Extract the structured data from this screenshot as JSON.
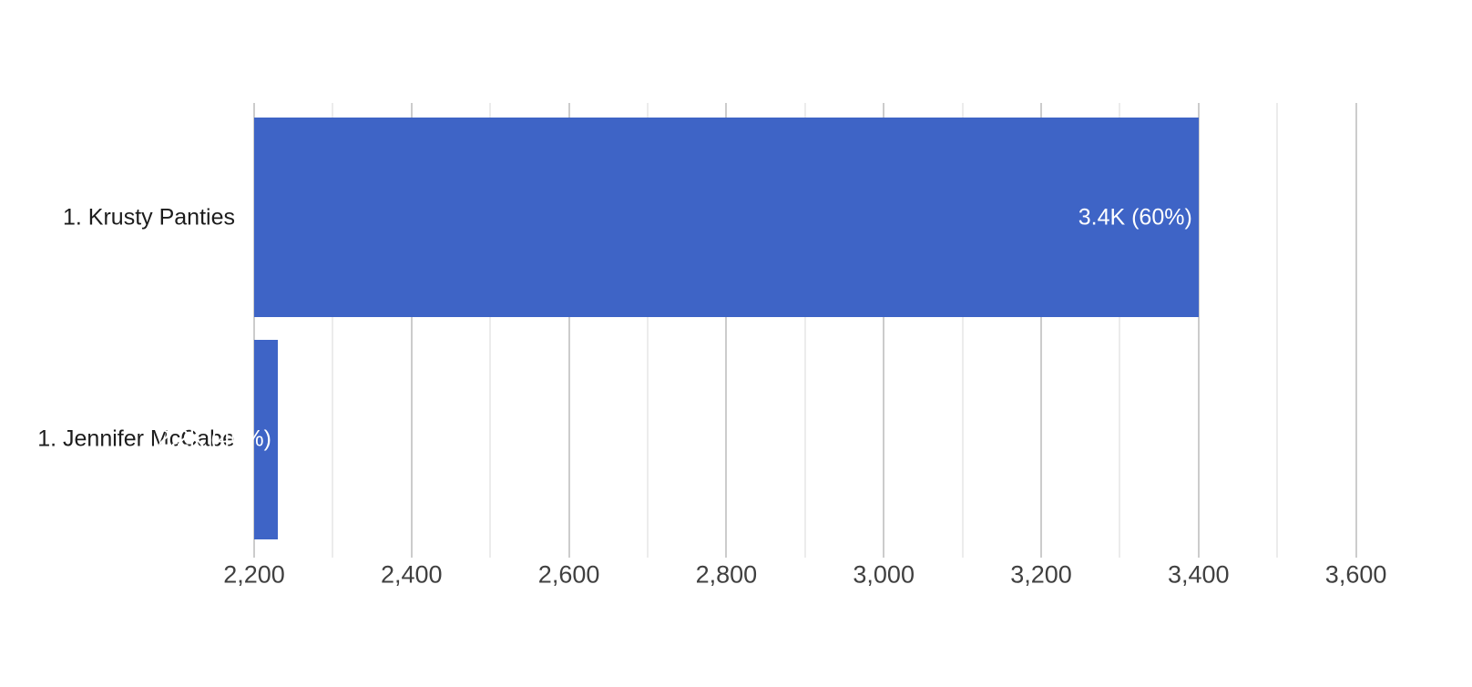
{
  "chart_data": {
    "type": "bar",
    "orientation": "horizontal",
    "title": "",
    "xlabel": "",
    "ylabel": "",
    "legend": "none",
    "grid": true,
    "categories": [
      "1. Krusty Panties",
      "1. Jennifer McCabe"
    ],
    "values": [
      3400,
      2230
    ],
    "data_labels": [
      "3.4K (60%)",
      "2.2K (40%)"
    ],
    "percentages": [
      60,
      40
    ],
    "axis": {
      "min": 2200,
      "max": 3700,
      "gridline_max": 3600,
      "major_tick_step": 200,
      "minor_gridline_step": 100,
      "tick_values": [
        2200,
        2400,
        2600,
        2800,
        3000,
        3200,
        3400,
        3600
      ],
      "tick_labels": [
        "2,200",
        "2,400",
        "2,600",
        "2,800",
        "3,000",
        "3,200",
        "3,400",
        "3,600"
      ]
    },
    "colors": {
      "bar": "#3e64c6",
      "grid_major": "#cccccc",
      "grid_minor": "#ececec",
      "axis_text": "#404040",
      "category_text": "#1c1c1c",
      "data_label_text": "#ffffff",
      "background": "#ffffff"
    }
  }
}
